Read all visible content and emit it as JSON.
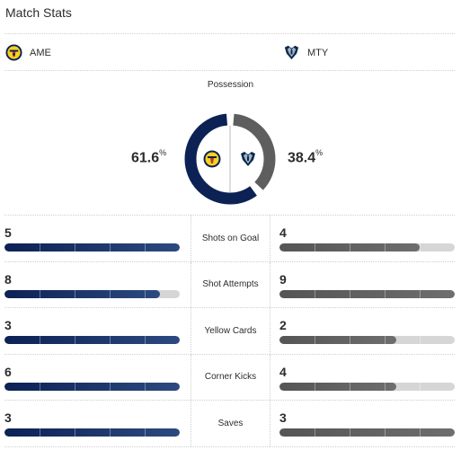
{
  "title": "Match Stats",
  "teams": {
    "home": {
      "abbr": "AME",
      "color": "#0c2154"
    },
    "away": {
      "abbr": "MTY",
      "color": "#606060"
    }
  },
  "possession": {
    "label": "Possession",
    "home_value": "61.6",
    "away_value": "38.4",
    "unit": "%",
    "home_fraction": 0.616,
    "away_fraction": 0.384
  },
  "stats": [
    {
      "label": "Shots on Goal",
      "home": "5",
      "away": "4",
      "home_fraction": 1.0,
      "away_fraction": 0.8
    },
    {
      "label": "Shot Attempts",
      "home": "8",
      "away": "9",
      "home_fraction": 0.889,
      "away_fraction": 1.0
    },
    {
      "label": "Yellow Cards",
      "home": "3",
      "away": "2",
      "home_fraction": 1.0,
      "away_fraction": 0.667
    },
    {
      "label": "Corner Kicks",
      "home": "6",
      "away": "4",
      "home_fraction": 1.0,
      "away_fraction": 0.667
    },
    {
      "label": "Saves",
      "home": "3",
      "away": "3",
      "home_fraction": 1.0,
      "away_fraction": 1.0
    }
  ]
}
